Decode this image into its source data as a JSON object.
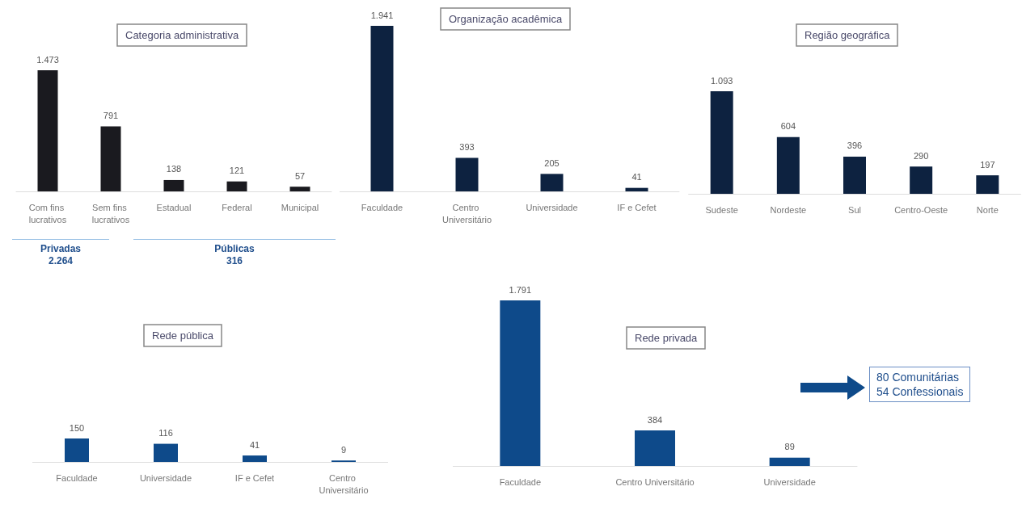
{
  "chart_data": [
    {
      "type": "bar",
      "title": "Categoria administrativa",
      "categories": [
        "Com fins lucrativos",
        "Sem fins lucrativos",
        "Estadual",
        "Federal",
        "Municipal"
      ],
      "values": [
        1473,
        791,
        138,
        121,
        57
      ],
      "value_labels": [
        "1.473",
        "791",
        "138",
        "121",
        "57"
      ],
      "color": "#1a1a1f",
      "annotations": [
        "Privadas\n2.264",
        "Públicas\n316"
      ]
    },
    {
      "type": "bar",
      "title": "Organização acadêmica",
      "categories": [
        "Faculdade",
        "Centro Universitário",
        "Universidade",
        "IF e Cefet"
      ],
      "values": [
        1941,
        393,
        205,
        41
      ],
      "value_labels": [
        "1.941",
        "393",
        "205",
        "41"
      ],
      "color": "#0d2240"
    },
    {
      "type": "bar",
      "title": "Região geográfica",
      "categories": [
        "Sudeste",
        "Nordeste",
        "Sul",
        "Centro-Oeste",
        "Norte"
      ],
      "values": [
        1093,
        604,
        396,
        290,
        197
      ],
      "value_labels": [
        "1.093",
        "604",
        "396",
        "290",
        "197"
      ],
      "color": "#0d2240"
    },
    {
      "type": "bar",
      "title": "Rede pública",
      "categories": [
        "Faculdade",
        "Universidade",
        "IF e Cefet",
        "Centro Universitário"
      ],
      "values": [
        150,
        116,
        41,
        9
      ],
      "value_labels": [
        "150",
        "116",
        "41",
        "9"
      ],
      "color": "#0e4a8a"
    },
    {
      "type": "bar",
      "title": "Rede privada",
      "categories": [
        "Faculdade",
        "Centro Universitário",
        "Universidade"
      ],
      "values": [
        1791,
        384,
        89
      ],
      "value_labels": [
        "1.791",
        "384",
        "89"
      ],
      "color": "#0e4a8a",
      "annotations": [
        "80 Comunitárias\n54 Confessionais"
      ]
    }
  ]
}
